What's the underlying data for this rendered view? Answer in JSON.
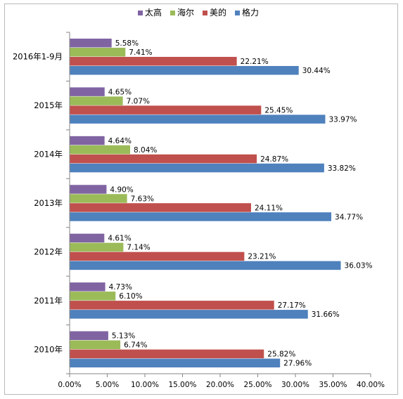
{
  "chart_data": {
    "type": "bar",
    "orientation": "horizontal",
    "categories": [
      "2016年1-9月",
      "2015年",
      "2014年",
      "2013年",
      "2012年",
      "2011年",
      "2010年"
    ],
    "series": [
      {
        "name": "太高",
        "color": "#8064A2",
        "values": [
          5.58,
          4.65,
          4.64,
          4.9,
          4.61,
          4.73,
          5.13
        ],
        "labels": [
          "5.58%",
          "4.65%",
          "4.64%",
          "4.90%",
          "4.61%",
          "4.73%",
          "5.13%"
        ]
      },
      {
        "name": "海尔",
        "color": "#9BBB59",
        "values": [
          7.41,
          7.07,
          8.04,
          7.63,
          7.14,
          6.1,
          6.74
        ],
        "labels": [
          "7.41%",
          "7.07%",
          "8.04%",
          "7.63%",
          "7.14%",
          "6.10%",
          "6.74%"
        ]
      },
      {
        "name": "美的",
        "color": "#C0504D",
        "values": [
          22.21,
          25.45,
          24.87,
          24.11,
          23.21,
          27.17,
          25.82
        ],
        "labels": [
          "22.21%",
          "25.45%",
          "24.87%",
          "24.11%",
          "23.21%",
          "27.17%",
          "25.82%"
        ]
      },
      {
        "name": "格力",
        "color": "#4F81BD",
        "values": [
          30.44,
          33.97,
          33.82,
          34.77,
          36.03,
          31.66,
          27.96
        ],
        "labels": [
          "30.44%",
          "33.97%",
          "33.82%",
          "34.77%",
          "36.03%",
          "31.66%",
          "27.96%"
        ]
      }
    ],
    "xlim": [
      0,
      40
    ],
    "xticks": [
      "0.00%",
      "5.00%",
      "10.00%",
      "15.00%",
      "20.00%",
      "25.00%",
      "30.00%",
      "35.00%",
      "40.00%"
    ],
    "legend_position": "top",
    "grid": false
  }
}
